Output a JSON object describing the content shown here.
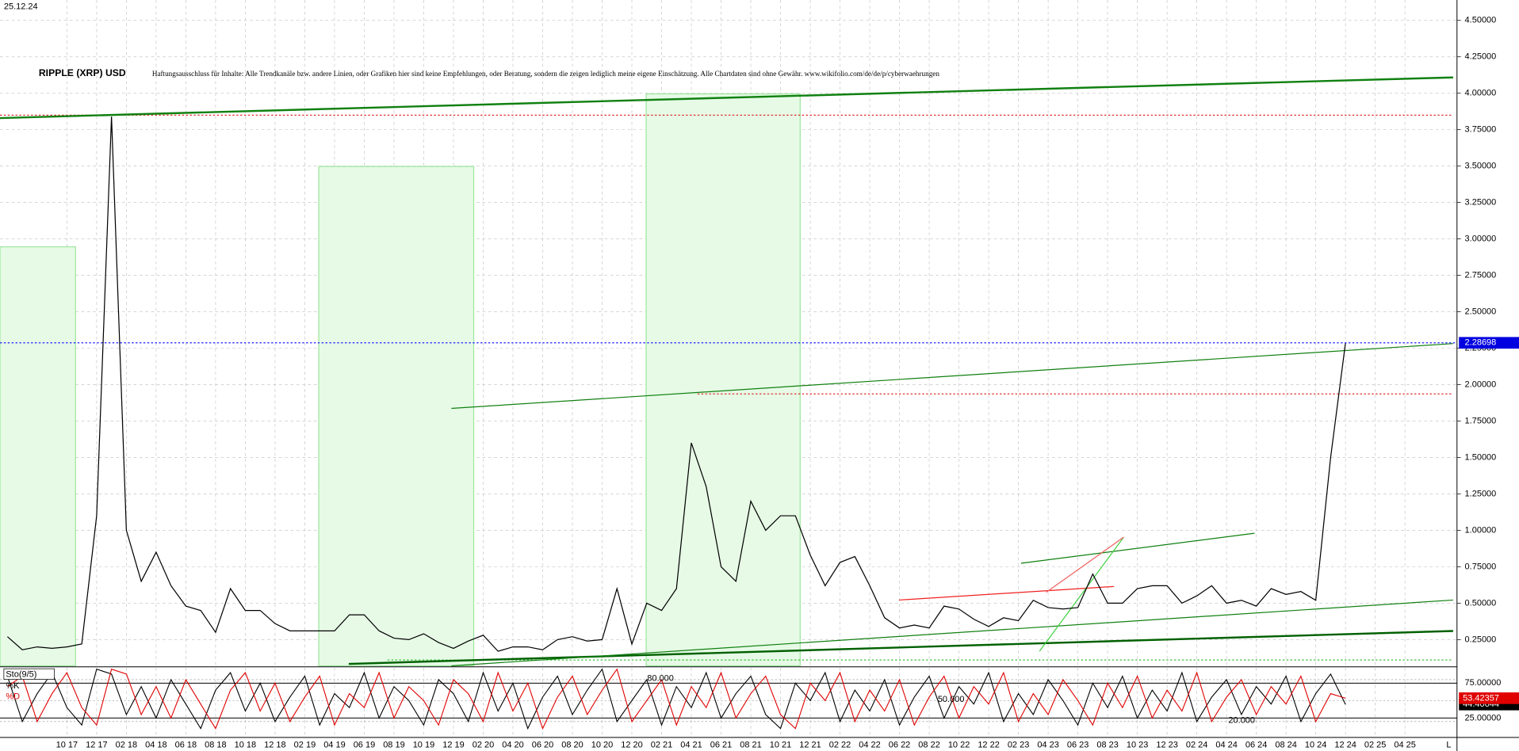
{
  "chart_data": [
    {
      "type": "line",
      "title": "RIPPLE (XRP) USD",
      "subtitle": "Haftungsausschluss für Inhalte: Alle Trendkanäle bzw. andere Linien, oder Grafiken hier sind keine Empfehlungen, oder Beratung, sondern die zeigen lediglich meine eigene Einschätzung. Alle Chartdaten sind ohne Gewähr. www.wikifolio.com/de/de/p/cyberwaehrungen",
      "date": "25.12.24",
      "categories": [
        null,
        null,
        null,
        null,
        "10 17",
        null,
        "12 17",
        null,
        "02 18",
        null,
        "04 18",
        null,
        "06 18",
        null,
        "08 18",
        null,
        "10 18",
        null,
        "12 18",
        null,
        "02 19",
        null,
        "04 19",
        null,
        "06 19",
        null,
        "08 19",
        null,
        "10 19",
        null,
        "12 19",
        null,
        "02 20",
        null,
        "04 20",
        null,
        "06 20",
        null,
        "08 20",
        null,
        "10 20",
        null,
        "12 20",
        null,
        "02 21",
        null,
        "04 21",
        null,
        "06 21",
        null,
        "08 21",
        null,
        "10 21",
        null,
        "12 21",
        null,
        "02 22",
        null,
        "04 22",
        null,
        "06 22",
        null,
        "08 22",
        null,
        "10 22",
        null,
        "12 22",
        null,
        "02 23",
        null,
        "04 23",
        null,
        "06 23",
        null,
        "08 23",
        null,
        "10 23",
        null,
        "12 23",
        null,
        "02 24",
        null,
        "04 24",
        null,
        "06 24",
        null,
        "08 24",
        null,
        "10 24",
        null,
        "12 24",
        null,
        "02 25",
        null,
        "04 25",
        null,
        null,
        null
      ],
      "series": [
        {
          "name": "XRP",
          "color": "#000000",
          "values": [
            0.27,
            0.18,
            0.2,
            0.19,
            0.2,
            0.22,
            1.1,
            3.84,
            1.0,
            0.65,
            0.85,
            0.62,
            0.48,
            0.45,
            0.3,
            0.6,
            0.45,
            0.45,
            0.36,
            0.31,
            0.31,
            0.31,
            0.31,
            0.42,
            0.42,
            0.31,
            0.26,
            0.25,
            0.29,
            0.23,
            0.19,
            0.24,
            0.28,
            0.17,
            0.2,
            0.2,
            0.18,
            0.25,
            0.27,
            0.24,
            0.25,
            0.6,
            0.22,
            0.5,
            0.45,
            0.6,
            1.6,
            1.3,
            0.75,
            0.65,
            1.2,
            1.0,
            1.1,
            1.1,
            0.83,
            0.62,
            0.78,
            0.82,
            0.62,
            0.4,
            0.33,
            0.35,
            0.33,
            0.48,
            0.46,
            0.39,
            0.34,
            0.4,
            0.38,
            0.52,
            0.47,
            0.46,
            0.47,
            0.7,
            0.5,
            0.5,
            0.6,
            0.62,
            0.62,
            0.5,
            0.55,
            0.62,
            0.5,
            0.52,
            0.48,
            0.6,
            0.56,
            0.58,
            0.52,
            1.5,
            2.28698,
            null,
            null,
            null,
            null,
            null,
            null,
            null
          ]
        }
      ],
      "price_marker": 2.28698,
      "ylim": [
        0.07,
        4.64
      ],
      "yticks": [
        {
          "value": 0.25,
          "label": "0.25000"
        },
        {
          "value": 0.5,
          "label": "0.50000"
        },
        {
          "value": 0.75,
          "label": "0.75000"
        },
        {
          "value": 1,
          "label": "1.00000"
        },
        {
          "value": 1.25,
          "label": "1.25000"
        },
        {
          "value": 1.5,
          "label": "1.50000"
        },
        {
          "value": 1.75,
          "label": "1.75000"
        },
        {
          "value": 2,
          "label": "2.00000"
        },
        {
          "value": 2.25,
          "label": "2.25000"
        },
        {
          "value": 2.5,
          "label": "2.50000"
        },
        {
          "value": 2.75,
          "label": "2.75000"
        },
        {
          "value": 3,
          "label": "3.00000"
        },
        {
          "value": 3.25,
          "label": "3.25000"
        },
        {
          "value": 3.5,
          "label": "3.50000"
        },
        {
          "value": 3.75,
          "label": "3.75000"
        },
        {
          "value": 4,
          "label": "4.00000"
        },
        {
          "value": 4.25,
          "label": "4.25000"
        },
        {
          "value": 4.5,
          "label": "4.50000"
        }
      ],
      "grid": true
    },
    {
      "type": "line",
      "title": "Sto(9/5)",
      "series": [
        {
          "name": "%K",
          "color": "#000000",
          "values": [
            85,
            20,
            60,
            90,
            40,
            15,
            95,
            88,
            30,
            70,
            25,
            80,
            45,
            10,
            65,
            90,
            35,
            75,
            20,
            55,
            85,
            15,
            60,
            40,
            90,
            25,
            70,
            50,
            15,
            80,
            60,
            20,
            90,
            35,
            75,
            10,
            55,
            85,
            30,
            65,
            95,
            20,
            50,
            80,
            15,
            70,
            40,
            90,
            25,
            60,
            85,
            30,
            10,
            75,
            50,
            90,
            20,
            65,
            35,
            80,
            15,
            55,
            85,
            25,
            70,
            45,
            90,
            20,
            60,
            30,
            80,
            50,
            15,
            75,
            40,
            85,
            25,
            65,
            35,
            90,
            20,
            55,
            80,
            30,
            70,
            45,
            85,
            20,
            60,
            88,
            44.40644,
            null,
            null,
            null,
            null,
            null,
            null,
            null
          ]
        },
        {
          "name": "%D",
          "color": "#e00000",
          "values": [
            70,
            85,
            20,
            60,
            90,
            40,
            15,
            95,
            88,
            30,
            70,
            25,
            80,
            45,
            10,
            65,
            90,
            35,
            75,
            20,
            55,
            85,
            15,
            60,
            40,
            90,
            25,
            70,
            50,
            15,
            80,
            60,
            20,
            90,
            35,
            75,
            10,
            55,
            85,
            30,
            65,
            95,
            20,
            50,
            80,
            15,
            70,
            40,
            90,
            25,
            60,
            85,
            30,
            10,
            75,
            50,
            90,
            20,
            65,
            35,
            80,
            15,
            55,
            85,
            25,
            70,
            45,
            90,
            20,
            60,
            30,
            80,
            50,
            15,
            75,
            40,
            85,
            25,
            65,
            35,
            90,
            20,
            55,
            80,
            30,
            70,
            45,
            85,
            20,
            60,
            53.42357,
            null,
            null,
            null,
            null,
            null,
            null,
            null
          ]
        }
      ],
      "levels": [
        {
          "value": 80,
          "label": "80.000"
        },
        {
          "value": 50,
          "label": "50.000"
        },
        {
          "value": 20,
          "label": "20.000"
        }
      ],
      "ylim": [
        0,
        97
      ],
      "yticks": [
        {
          "value": 75,
          "label": "75.00000"
        },
        {
          "value": 25,
          "label": "25.00000"
        }
      ]
    }
  ],
  "toolbar": {
    "button": "L"
  }
}
